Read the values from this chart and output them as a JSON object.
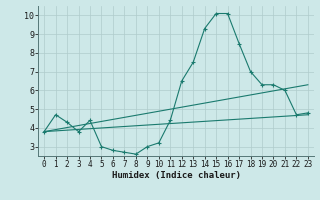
{
  "background_color": "#cde8e8",
  "grid_color": "#b0cccc",
  "line_color": "#1a7a6e",
  "xlabel": "Humidex (Indice chaleur)",
  "xlim": [
    -0.5,
    23.5
  ],
  "ylim": [
    2.5,
    10.5
  ],
  "xticks": [
    0,
    1,
    2,
    3,
    4,
    5,
    6,
    7,
    8,
    9,
    10,
    11,
    12,
    13,
    14,
    15,
    16,
    17,
    18,
    19,
    20,
    21,
    22,
    23
  ],
  "yticks": [
    3,
    4,
    5,
    6,
    7,
    8,
    9,
    10
  ],
  "line1_x": [
    0,
    1,
    2,
    3,
    4,
    5,
    6,
    7,
    8,
    9,
    10,
    11,
    12,
    13,
    14,
    15,
    16,
    17,
    18,
    19,
    20,
    21,
    22,
    23
  ],
  "line1_y": [
    3.8,
    4.7,
    4.3,
    3.8,
    4.4,
    3.0,
    2.8,
    2.7,
    2.6,
    3.0,
    3.2,
    4.4,
    6.5,
    7.5,
    9.3,
    10.1,
    10.1,
    8.5,
    7.0,
    6.3,
    6.3,
    6.0,
    4.7,
    4.8
  ],
  "line2_x": [
    0,
    23
  ],
  "line2_y": [
    3.8,
    6.3
  ],
  "line3_x": [
    0,
    23
  ],
  "line3_y": [
    3.8,
    4.7
  ],
  "marker_x": [
    0,
    1,
    2,
    3,
    4,
    5,
    6,
    7,
    8,
    9,
    10,
    11,
    12,
    13,
    14,
    15,
    16,
    17,
    18,
    19,
    20,
    21,
    22,
    23
  ],
  "marker_y": [
    3.8,
    4.7,
    4.3,
    3.8,
    4.4,
    3.0,
    2.8,
    2.7,
    2.6,
    3.0,
    3.2,
    4.4,
    6.5,
    7.5,
    9.3,
    10.1,
    10.1,
    8.5,
    7.0,
    6.3,
    6.3,
    6.0,
    4.7,
    4.8
  ],
  "xlabel_fontsize": 6.5,
  "tick_fontsize": 5.5
}
